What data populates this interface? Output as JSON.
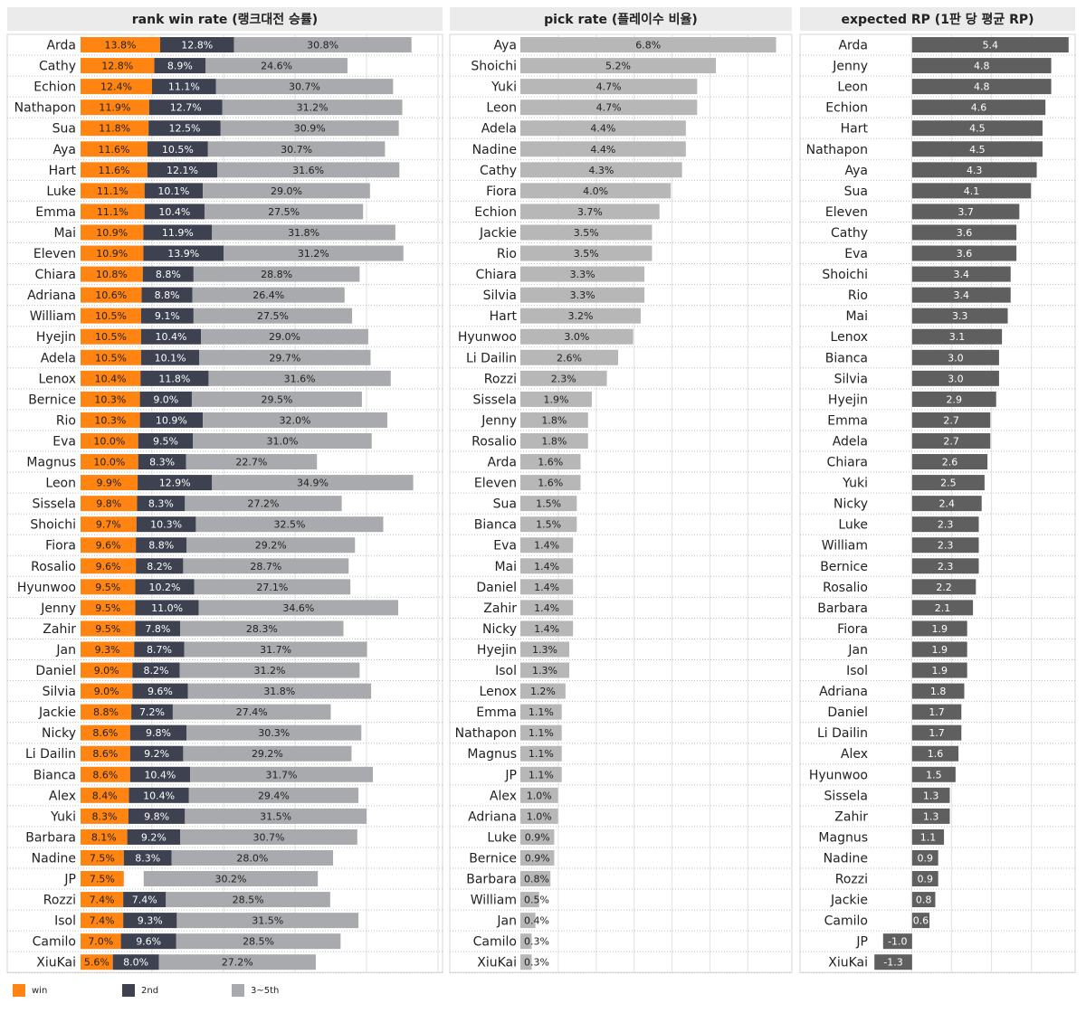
{
  "colors": {
    "win": "#FF8411",
    "second": "#3D4150",
    "third_fifth": "#A8AAAD",
    "pick": "#B7B7B7",
    "rp": "#5F5F5F"
  },
  "legend": [
    {
      "label": "win",
      "color": "#FF8411"
    },
    {
      "label": "2nd",
      "color": "#3D4150"
    },
    {
      "label": "3~5th",
      "color": "#A8AAAD"
    }
  ],
  "chart_data": [
    {
      "type": "bar",
      "stacked": true,
      "orientation": "horizontal",
      "title": "rank win rate (랭크대전 승률)",
      "xlim": [
        0,
        62
      ],
      "series_names": [
        "win",
        "2nd",
        "3~5th"
      ],
      "rows": [
        {
          "name": "Arda",
          "win": "13.8%",
          "second": "12.8%",
          "third": "30.8%"
        },
        {
          "name": "Cathy",
          "win": "12.8%",
          "second": "8.9%",
          "third": "24.6%"
        },
        {
          "name": "Echion",
          "win": "12.4%",
          "second": "11.1%",
          "third": "30.7%"
        },
        {
          "name": "Nathapon",
          "win": "11.9%",
          "second": "12.7%",
          "third": "31.2%"
        },
        {
          "name": "Sua",
          "win": "11.8%",
          "second": "12.5%",
          "third": "30.9%"
        },
        {
          "name": "Aya",
          "win": "11.6%",
          "second": "10.5%",
          "third": "30.7%"
        },
        {
          "name": "Hart",
          "win": "11.6%",
          "second": "12.1%",
          "third": "31.6%"
        },
        {
          "name": "Luke",
          "win": "11.1%",
          "second": "10.1%",
          "third": "29.0%"
        },
        {
          "name": "Emma",
          "win": "11.1%",
          "second": "10.4%",
          "third": "27.5%"
        },
        {
          "name": "Mai",
          "win": "10.9%",
          "second": "11.9%",
          "third": "31.8%"
        },
        {
          "name": "Eleven",
          "win": "10.9%",
          "second": "13.9%",
          "third": "31.2%"
        },
        {
          "name": "Chiara",
          "win": "10.8%",
          "second": "8.8%",
          "third": "28.8%"
        },
        {
          "name": "Adriana",
          "win": "10.6%",
          "second": "8.8%",
          "third": "26.4%"
        },
        {
          "name": "William",
          "win": "10.5%",
          "second": "9.1%",
          "third": "27.5%"
        },
        {
          "name": "Hyejin",
          "win": "10.5%",
          "second": "10.4%",
          "third": "29.0%"
        },
        {
          "name": "Adela",
          "win": "10.5%",
          "second": "10.1%",
          "third": "29.7%"
        },
        {
          "name": "Lenox",
          "win": "10.4%",
          "second": "11.8%",
          "third": "31.6%"
        },
        {
          "name": "Bernice",
          "win": "10.3%",
          "second": "9.0%",
          "third": "29.5%"
        },
        {
          "name": "Rio",
          "win": "10.3%",
          "second": "10.9%",
          "third": "32.0%"
        },
        {
          "name": "Eva",
          "win": "10.0%",
          "second": "9.5%",
          "third": "31.0%"
        },
        {
          "name": "Magnus",
          "win": "10.0%",
          "second": "8.3%",
          "third": "22.7%"
        },
        {
          "name": "Leon",
          "win": "9.9%",
          "second": "12.9%",
          "third": "34.9%"
        },
        {
          "name": "Sissela",
          "win": "9.8%",
          "second": "8.3%",
          "third": "27.2%"
        },
        {
          "name": "Shoichi",
          "win": "9.7%",
          "second": "10.3%",
          "third": "32.5%"
        },
        {
          "name": "Fiora",
          "win": "9.6%",
          "second": "8.8%",
          "third": "29.2%"
        },
        {
          "name": "Rosalio",
          "win": "9.6%",
          "second": "8.2%",
          "third": "28.7%"
        },
        {
          "name": "Hyunwoo",
          "win": "9.5%",
          "second": "10.2%",
          "third": "27.1%"
        },
        {
          "name": "Jenny",
          "win": "9.5%",
          "second": "11.0%",
          "third": "34.6%"
        },
        {
          "name": "Zahir",
          "win": "9.5%",
          "second": "7.8%",
          "third": "28.3%"
        },
        {
          "name": "Jan",
          "win": "9.3%",
          "second": "8.7%",
          "third": "31.7%"
        },
        {
          "name": "Daniel",
          "win": "9.0%",
          "second": "8.2%",
          "third": "31.2%"
        },
        {
          "name": "Silvia",
          "win": "9.0%",
          "second": "9.6%",
          "third": "31.8%"
        },
        {
          "name": "Jackie",
          "win": "8.8%",
          "second": "7.2%",
          "third": "27.4%"
        },
        {
          "name": "Nicky",
          "win": "8.6%",
          "second": "9.8%",
          "third": "30.3%"
        },
        {
          "name": "Li Dailin",
          "win": "8.6%",
          "second": "9.2%",
          "third": "29.2%"
        },
        {
          "name": "Bianca",
          "win": "8.6%",
          "second": "10.4%",
          "third": "31.7%"
        },
        {
          "name": "Alex",
          "win": "8.4%",
          "second": "10.4%",
          "third": "29.4%"
        },
        {
          "name": "Yuki",
          "win": "8.3%",
          "second": "9.8%",
          "third": "31.5%"
        },
        {
          "name": "Barbara",
          "win": "8.1%",
          "second": "9.2%",
          "third": "30.7%"
        },
        {
          "name": "Nadine",
          "win": "7.5%",
          "second": "8.3%",
          "third": "28.0%"
        },
        {
          "name": "JP",
          "win": "7.5%",
          "second": "",
          "third": "30.2%"
        },
        {
          "name": "Rozzi",
          "win": "7.4%",
          "second": "7.4%",
          "third": "28.5%"
        },
        {
          "name": "Isol",
          "win": "7.4%",
          "second": "9.3%",
          "third": "31.5%"
        },
        {
          "name": "Camilo",
          "win": "7.0%",
          "second": "9.6%",
          "third": "28.5%"
        },
        {
          "name": "XiuKai",
          "win": "5.6%",
          "second": "8.0%",
          "third": "27.2%"
        }
      ]
    },
    {
      "type": "bar",
      "orientation": "horizontal",
      "title": "pick rate (플레이수 비율)",
      "xlim": [
        0,
        7.1
      ],
      "rows": [
        {
          "name": "Aya",
          "value": "6.8%"
        },
        {
          "name": "Shoichi",
          "value": "5.2%"
        },
        {
          "name": "Yuki",
          "value": "4.7%"
        },
        {
          "name": "Leon",
          "value": "4.7%"
        },
        {
          "name": "Adela",
          "value": "4.4%"
        },
        {
          "name": "Nadine",
          "value": "4.4%"
        },
        {
          "name": "Cathy",
          "value": "4.3%"
        },
        {
          "name": "Fiora",
          "value": "4.0%"
        },
        {
          "name": "Echion",
          "value": "3.7%"
        },
        {
          "name": "Jackie",
          "value": "3.5%"
        },
        {
          "name": "Rio",
          "value": "3.5%"
        },
        {
          "name": "Chiara",
          "value": "3.3%"
        },
        {
          "name": "Silvia",
          "value": "3.3%"
        },
        {
          "name": "Hart",
          "value": "3.2%"
        },
        {
          "name": "Hyunwoo",
          "value": "3.0%"
        },
        {
          "name": "Li Dailin",
          "value": "2.6%"
        },
        {
          "name": "Rozzi",
          "value": "2.3%"
        },
        {
          "name": "Sissela",
          "value": "1.9%"
        },
        {
          "name": "Jenny",
          "value": "1.8%"
        },
        {
          "name": "Rosalio",
          "value": "1.8%"
        },
        {
          "name": "Arda",
          "value": "1.6%"
        },
        {
          "name": "Eleven",
          "value": "1.6%"
        },
        {
          "name": "Sua",
          "value": "1.5%"
        },
        {
          "name": "Bianca",
          "value": "1.5%"
        },
        {
          "name": "Eva",
          "value": "1.4%"
        },
        {
          "name": "Mai",
          "value": "1.4%"
        },
        {
          "name": "Daniel",
          "value": "1.4%"
        },
        {
          "name": "Zahir",
          "value": "1.4%"
        },
        {
          "name": "Nicky",
          "value": "1.4%"
        },
        {
          "name": "Hyejin",
          "value": "1.3%"
        },
        {
          "name": "Isol",
          "value": "1.3%"
        },
        {
          "name": "Lenox",
          "value": "1.2%"
        },
        {
          "name": "Emma",
          "value": "1.1%"
        },
        {
          "name": "Nathapon",
          "value": "1.1%"
        },
        {
          "name": "Magnus",
          "value": "1.1%"
        },
        {
          "name": "JP",
          "value": "1.1%"
        },
        {
          "name": "Alex",
          "value": "1.0%"
        },
        {
          "name": "Adriana",
          "value": "1.0%"
        },
        {
          "name": "Luke",
          "value": "0.9%"
        },
        {
          "name": "Bernice",
          "value": "0.9%"
        },
        {
          "name": "Barbara",
          "value": "0.8%"
        },
        {
          "name": "William",
          "value": "0.5%"
        },
        {
          "name": "Jan",
          "value": "0.4%"
        },
        {
          "name": "Camilo",
          "value": "0.3%"
        },
        {
          "name": "XiuKai",
          "value": "0.3%"
        }
      ]
    },
    {
      "type": "bar",
      "orientation": "horizontal",
      "title": "expected RP (1판 당 평균 RP)",
      "xlim": [
        -1.4,
        5.5
      ],
      "rows": [
        {
          "name": "Arda",
          "value": "5.4"
        },
        {
          "name": "Jenny",
          "value": "4.8"
        },
        {
          "name": "Leon",
          "value": "4.8"
        },
        {
          "name": "Echion",
          "value": "4.6"
        },
        {
          "name": "Hart",
          "value": "4.5"
        },
        {
          "name": "Nathapon",
          "value": "4.5"
        },
        {
          "name": "Aya",
          "value": "4.3"
        },
        {
          "name": "Sua",
          "value": "4.1"
        },
        {
          "name": "Eleven",
          "value": "3.7"
        },
        {
          "name": "Cathy",
          "value": "3.6"
        },
        {
          "name": "Eva",
          "value": "3.6"
        },
        {
          "name": "Shoichi",
          "value": "3.4"
        },
        {
          "name": "Rio",
          "value": "3.4"
        },
        {
          "name": "Mai",
          "value": "3.3"
        },
        {
          "name": "Lenox",
          "value": "3.1"
        },
        {
          "name": "Bianca",
          "value": "3.0"
        },
        {
          "name": "Silvia",
          "value": "3.0"
        },
        {
          "name": "Hyejin",
          "value": "2.9"
        },
        {
          "name": "Emma",
          "value": "2.7"
        },
        {
          "name": "Adela",
          "value": "2.7"
        },
        {
          "name": "Chiara",
          "value": "2.6"
        },
        {
          "name": "Yuki",
          "value": "2.5"
        },
        {
          "name": "Nicky",
          "value": "2.4"
        },
        {
          "name": "Luke",
          "value": "2.3"
        },
        {
          "name": "William",
          "value": "2.3"
        },
        {
          "name": "Bernice",
          "value": "2.3"
        },
        {
          "name": "Rosalio",
          "value": "2.2"
        },
        {
          "name": "Barbara",
          "value": "2.1"
        },
        {
          "name": "Fiora",
          "value": "1.9"
        },
        {
          "name": "Jan",
          "value": "1.9"
        },
        {
          "name": "Isol",
          "value": "1.9"
        },
        {
          "name": "Adriana",
          "value": "1.8"
        },
        {
          "name": "Daniel",
          "value": "1.7"
        },
        {
          "name": "Li Dailin",
          "value": "1.7"
        },
        {
          "name": "Alex",
          "value": "1.6"
        },
        {
          "name": "Hyunwoo",
          "value": "1.5"
        },
        {
          "name": "Sissela",
          "value": "1.3"
        },
        {
          "name": "Zahir",
          "value": "1.3"
        },
        {
          "name": "Magnus",
          "value": "1.1"
        },
        {
          "name": "Nadine",
          "value": "0.9"
        },
        {
          "name": "Rozzi",
          "value": "0.9"
        },
        {
          "name": "Jackie",
          "value": "0.8"
        },
        {
          "name": "Camilo",
          "value": "0.6"
        },
        {
          "name": "JP",
          "value": "-1.0"
        },
        {
          "name": "XiuKai",
          "value": "-1.3"
        }
      ]
    }
  ]
}
